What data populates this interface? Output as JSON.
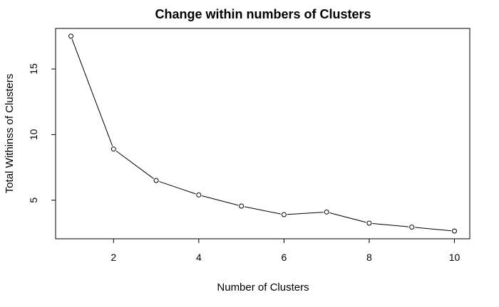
{
  "chart_data": {
    "type": "line",
    "title": "Change within numbers of Clusters",
    "xlabel": "Number of Clusters",
    "ylabel": "Total Withinss of Clusters",
    "x": [
      1,
      2,
      3,
      4,
      5,
      6,
      7,
      8,
      9,
      10
    ],
    "series": [
      {
        "values": [
          17.5,
          8.9,
          6.5,
          5.4,
          4.55,
          3.9,
          4.1,
          3.25,
          2.95,
          2.65
        ]
      }
    ],
    "xlim": [
      0.64,
      10.36
    ],
    "ylim": [
      2.06,
      18.09
    ],
    "x_ticks": [
      2,
      4,
      6,
      8,
      10
    ],
    "y_ticks": [
      5,
      10,
      15
    ],
    "x_tick_labels": [
      "2",
      "4",
      "6",
      "8",
      "10"
    ],
    "y_tick_labels": [
      "5",
      "10",
      "15"
    ],
    "markers": "open-circle",
    "line_color": "#000000",
    "grid": false,
    "legend": "none"
  }
}
